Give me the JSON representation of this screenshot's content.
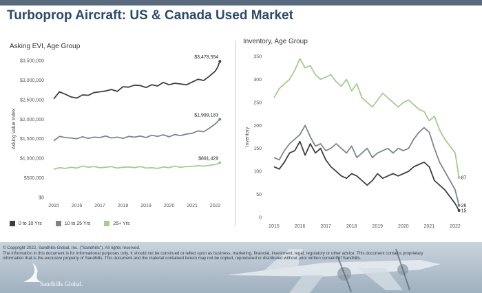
{
  "page_title": "Turboprop Aircraft:  US & Canada Used Market",
  "colors": {
    "header_bar": "#5a6a7e",
    "title": "#2b4a6b",
    "series_0_10": "#3b3e44",
    "series_10_25": "#7c8591",
    "series_25_plus": "#a3cc8f"
  },
  "chart_data": [
    {
      "type": "line",
      "title": "Asking EVI, Age Group",
      "xlabel": "",
      "ylabel": "Asking Value Index",
      "xlim": [
        2015,
        2022.4
      ],
      "ylim": [
        0,
        3500000
      ],
      "y_ticks": [
        0,
        500000,
        1000000,
        1500000,
        2000000,
        2500000,
        3000000,
        3500000
      ],
      "y_tick_labels": [
        "$0",
        "$500,000",
        "$1,000,000",
        "$1,500,000",
        "$2,000,000",
        "$2,500,000",
        "$3,000,000",
        "$3,500,000"
      ],
      "x_ticks": [
        2015,
        2016,
        2017,
        2018,
        2019,
        2020,
        2021,
        2022
      ],
      "x_tick_labels": [
        "2015",
        "2016",
        "2017",
        "2018",
        "2019",
        "2020",
        "2021",
        "2022"
      ],
      "legend_position": "bottom",
      "series": [
        {
          "name": "0 to 10 Yrs",
          "color": "#3b3e44",
          "x": [
            2015.0,
            2015.25,
            2015.5,
            2015.75,
            2016.0,
            2016.25,
            2016.5,
            2016.75,
            2017.0,
            2017.25,
            2017.5,
            2017.75,
            2018.0,
            2018.25,
            2018.5,
            2018.75,
            2019.0,
            2019.25,
            2019.5,
            2019.75,
            2020.0,
            2020.25,
            2020.5,
            2020.75,
            2021.0,
            2021.25,
            2021.5,
            2021.75,
            2022.0,
            2022.1,
            2022.2
          ],
          "y": [
            2520000,
            2700000,
            2640000,
            2570000,
            2540000,
            2620000,
            2610000,
            2680000,
            2700000,
            2720000,
            2760000,
            2710000,
            2830000,
            2820000,
            2870000,
            2860000,
            2810000,
            2880000,
            2850000,
            2940000,
            2880000,
            2920000,
            2900000,
            2880000,
            2950000,
            3020000,
            2990000,
            3100000,
            3230000,
            3320000,
            3478554
          ],
          "end_label": "$3,478,554"
        },
        {
          "name": "10 to 25 Yrs",
          "color": "#7c8591",
          "x": [
            2015.0,
            2015.25,
            2015.5,
            2015.75,
            2016.0,
            2016.25,
            2016.5,
            2016.75,
            2017.0,
            2017.25,
            2017.5,
            2017.75,
            2018.0,
            2018.25,
            2018.5,
            2018.75,
            2019.0,
            2019.25,
            2019.5,
            2019.75,
            2020.0,
            2020.25,
            2020.5,
            2020.75,
            2021.0,
            2021.25,
            2021.5,
            2021.75,
            2022.0,
            2022.1,
            2022.2
          ],
          "y": [
            1450000,
            1560000,
            1530000,
            1520000,
            1500000,
            1550000,
            1510000,
            1540000,
            1530000,
            1570000,
            1520000,
            1540000,
            1510000,
            1560000,
            1540000,
            1570000,
            1530000,
            1590000,
            1560000,
            1600000,
            1550000,
            1610000,
            1580000,
            1620000,
            1640000,
            1700000,
            1680000,
            1770000,
            1880000,
            1940000,
            1999183
          ],
          "end_label": "$1,999,183"
        },
        {
          "name": "25+ Yrs",
          "color": "#a3cc8f",
          "x": [
            2015.0,
            2015.25,
            2015.5,
            2015.75,
            2016.0,
            2016.25,
            2016.5,
            2016.75,
            2017.0,
            2017.25,
            2017.5,
            2017.75,
            2018.0,
            2018.25,
            2018.5,
            2018.75,
            2019.0,
            2019.25,
            2019.5,
            2019.75,
            2020.0,
            2020.25,
            2020.5,
            2020.75,
            2021.0,
            2021.25,
            2021.5,
            2021.75,
            2022.0,
            2022.1,
            2022.2
          ],
          "y": [
            720000,
            760000,
            740000,
            770000,
            750000,
            800000,
            770000,
            790000,
            760000,
            770000,
            790000,
            750000,
            770000,
            780000,
            760000,
            790000,
            750000,
            760000,
            740000,
            780000,
            760000,
            800000,
            770000,
            790000,
            790000,
            810000,
            800000,
            820000,
            840000,
            860000,
            891429
          ],
          "end_label": "$891,429"
        }
      ]
    },
    {
      "type": "line",
      "title": "Inventory, Age Group",
      "xlabel": "",
      "ylabel": "Inventory",
      "xlim": [
        2015,
        2022.4
      ],
      "ylim": [
        0,
        350
      ],
      "y_ticks": [
        0,
        50,
        100,
        150,
        200,
        250,
        300,
        350
      ],
      "y_tick_labels": [
        "0",
        "50",
        "100",
        "150",
        "200",
        "250",
        "300",
        "350"
      ],
      "x_ticks": [
        2015,
        2016,
        2017,
        2018,
        2019,
        2020,
        2021,
        2022
      ],
      "x_tick_labels": [
        "2015",
        "2016",
        "2017",
        "2018",
        "2019",
        "2020",
        "2021",
        "2022"
      ],
      "series": [
        {
          "name": "0 to 10 Yrs",
          "color": "#3b3e44",
          "x": [
            2015.0,
            2015.2,
            2015.4,
            2015.6,
            2015.8,
            2016.0,
            2016.2,
            2016.4,
            2016.6,
            2016.8,
            2017.0,
            2017.2,
            2017.4,
            2017.6,
            2017.8,
            2018.0,
            2018.2,
            2018.4,
            2018.6,
            2018.8,
            2019.0,
            2019.2,
            2019.4,
            2019.6,
            2019.8,
            2020.0,
            2020.2,
            2020.4,
            2020.6,
            2020.8,
            2021.0,
            2021.2,
            2021.4,
            2021.6,
            2021.8,
            2022.0,
            2022.15
          ],
          "y": [
            110,
            105,
            120,
            140,
            145,
            165,
            135,
            160,
            140,
            150,
            125,
            110,
            100,
            90,
            85,
            95,
            90,
            80,
            70,
            80,
            95,
            85,
            90,
            95,
            90,
            95,
            100,
            110,
            115,
            120,
            110,
            80,
            70,
            60,
            45,
            30,
            15
          ],
          "end_label": "15"
        },
        {
          "name": "10 to 25 Yrs",
          "color": "#7c8591",
          "x": [
            2015.0,
            2015.2,
            2015.4,
            2015.6,
            2015.8,
            2016.0,
            2016.2,
            2016.4,
            2016.6,
            2016.8,
            2017.0,
            2017.2,
            2017.4,
            2017.6,
            2017.8,
            2018.0,
            2018.2,
            2018.4,
            2018.6,
            2018.8,
            2019.0,
            2019.2,
            2019.4,
            2019.6,
            2019.8,
            2020.0,
            2020.2,
            2020.4,
            2020.6,
            2020.8,
            2021.0,
            2021.2,
            2021.4,
            2021.6,
            2021.8,
            2022.0,
            2022.15
          ],
          "y": [
            130,
            125,
            145,
            160,
            170,
            180,
            200,
            175,
            155,
            160,
            145,
            150,
            160,
            150,
            140,
            155,
            130,
            140,
            150,
            130,
            140,
            145,
            150,
            140,
            150,
            145,
            150,
            170,
            185,
            195,
            185,
            150,
            120,
            100,
            80,
            60,
            26
          ],
          "end_label": "26"
        },
        {
          "name": "25+ Yrs",
          "color": "#a3cc8f",
          "x": [
            2015.0,
            2015.2,
            2015.4,
            2015.6,
            2015.8,
            2016.0,
            2016.2,
            2016.4,
            2016.6,
            2016.8,
            2017.0,
            2017.2,
            2017.4,
            2017.6,
            2017.8,
            2018.0,
            2018.2,
            2018.4,
            2018.6,
            2018.8,
            2019.0,
            2019.2,
            2019.4,
            2019.6,
            2019.8,
            2020.0,
            2020.2,
            2020.4,
            2020.6,
            2020.8,
            2021.0,
            2021.2,
            2021.4,
            2021.6,
            2021.8,
            2022.0,
            2022.15
          ],
          "y": [
            260,
            280,
            290,
            300,
            320,
            345,
            325,
            330,
            310,
            300,
            305,
            310,
            295,
            285,
            300,
            275,
            290,
            260,
            250,
            240,
            255,
            270,
            260,
            250,
            240,
            250,
            255,
            245,
            235,
            230,
            210,
            220,
            190,
            170,
            155,
            140,
            87
          ],
          "end_label": "87"
        }
      ]
    }
  ],
  "legend": [
    {
      "label": "0 to 10 Yrs",
      "color": "#3b3e44"
    },
    {
      "label": "10 to 25 Yrs",
      "color": "#7c8591"
    },
    {
      "label": "25+ Yrs",
      "color": "#a3cc8f"
    }
  ],
  "footer": {
    "copyright_lines": [
      "© Copyright 2022, Sandhills Global, Inc. (\"Sandhills\"). All rights reserved.",
      "The information in this document is for informational purposes only.  It should not be construed or relied upon as business, marketing, financial, investment, legal, regulatory or other advice. This document contains proprietary",
      "information that is the exclusive property of Sandhills. This document and the material contained herein may not be copied, reproduced or distributed without prior written consent of Sandhills."
    ],
    "brand": "Sandhills Global."
  }
}
